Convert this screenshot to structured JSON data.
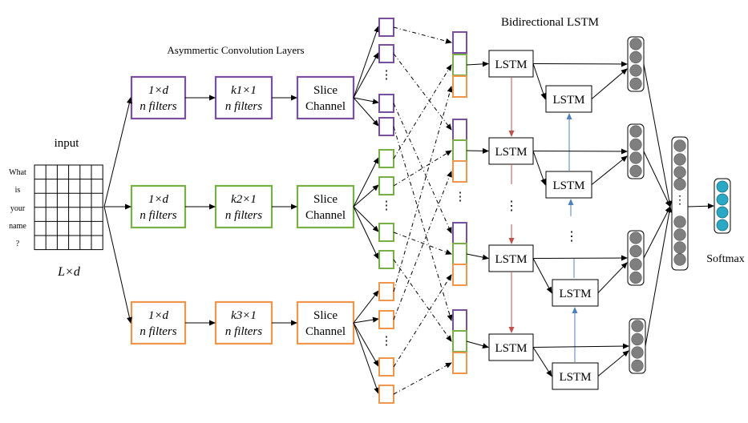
{
  "labels": {
    "input": "input",
    "words": [
      "What",
      "is",
      "your",
      "name",
      "?"
    ],
    "input_size": "L×d",
    "conv_title": "Asymmertic  Convolution Layers",
    "bilstm_title": "Bidirectional LSTM",
    "softmax": "Softmax",
    "lstm": "LSTM"
  },
  "branches": [
    {
      "color": "#7b4fa0",
      "conv1_top": "1×d",
      "conv1_bottom": "n filters",
      "conv2_top": "k1×1",
      "conv2_bottom": "n filters",
      "slice_top": "Slice",
      "slice_bottom": "Channel"
    },
    {
      "color": "#77b043",
      "conv1_top": "1×d",
      "conv1_bottom": "n filters",
      "conv2_top": "k2×1",
      "conv2_bottom": "n filters",
      "slice_top": "Slice",
      "slice_bottom": "Channel"
    },
    {
      "color": "#f0954a",
      "conv1_top": "1×d",
      "conv1_bottom": "n filters",
      "conv2_top": "k3×1",
      "conv2_bottom": "n filters",
      "slice_top": "Slice",
      "slice_bottom": "Channel"
    }
  ],
  "colors": {
    "forward_arrow": "#c0504d",
    "backward_arrow": "#4f81bd",
    "hidden_node": "#7f7f7f",
    "softmax_node": "#2aa8c4"
  }
}
